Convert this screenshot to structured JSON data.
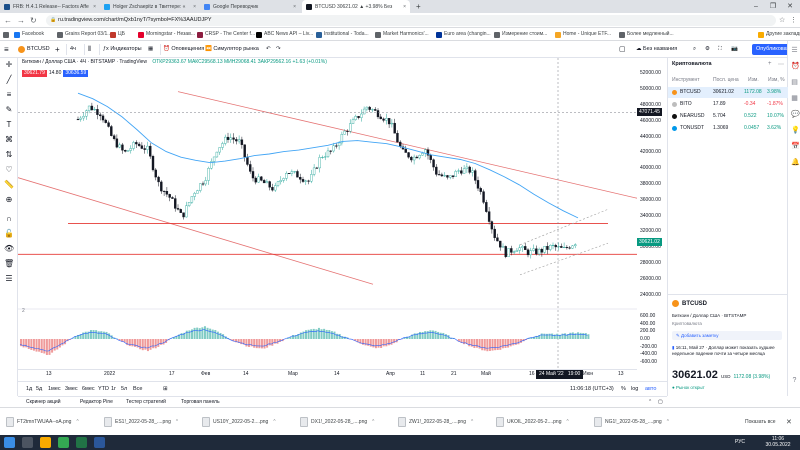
{
  "browser": {
    "tabs": [
      {
        "label": "FRB: H.4.1 Release-- Factors Affe",
        "color": "#1a4f8b"
      },
      {
        "label": "Holger Zschaepitz в Твиттере: «",
        "color": "#1da1f2"
      },
      {
        "label": "Google Переводчик",
        "color": "#4285f4"
      },
      {
        "label": "BTCUSD 30621.02 ▲ +3.98% Без",
        "color": "#131722"
      }
    ],
    "new_tab": "+",
    "url": "ru.tradingview.com/chart/mQxb1nyT/?symbol=FX%3AAUDJPY",
    "lock": "🔒"
  },
  "bookmarks": {
    "apps_label": "Приложения",
    "items": [
      {
        "label": "Facebook",
        "color": "#1877f2"
      },
      {
        "label": "Grains Report 03/1...",
        "color": "#5f6368"
      },
      {
        "label": "ЦБ",
        "color": "#c0392b"
      },
      {
        "label": "Morningstar - Незав...",
        "color": "#e4002b"
      },
      {
        "label": "CRSP - The Center f...",
        "color": "#8c1d40"
      },
      {
        "label": "ABC News API – Liv...",
        "color": "#000000"
      },
      {
        "label": "Institutional - Toda...",
        "color": "#2a6099"
      },
      {
        "label": "Market Harmonics'...",
        "color": "#5f6368"
      },
      {
        "label": "Euro area (changin...",
        "color": "#003399"
      },
      {
        "label": "Измерение стоим...",
        "color": "#5f6368"
      },
      {
        "label": "Home - Unique ETF...",
        "color": "#f5a623"
      },
      {
        "label": "Более медленный...",
        "color": "#5f6368"
      }
    ],
    "other": "Другие закладки"
  },
  "tv_toolbar": {
    "symbol": "BTCUSD",
    "interval": "4ч",
    "indicators": "Индикаторы",
    "alerts": "Оповещения",
    "replay": "Симулятор рынка",
    "layout_name": "Без названия",
    "publish": "Опубликовать"
  },
  "legend": {
    "title": "Биткоин / Доллар США · 4Ч · BITSTAMP · TradingView",
    "ohlc": "ОТКР29363.67 МАКС29568.13 МИН29068.41 ЗАКР29562.16 +1.63 (+0.01%)",
    "bid": "30621.79",
    "ask": "30636.59",
    "spread": "14.80",
    "osc_label": "2"
  },
  "price_scale": {
    "labels": [
      "52000.00",
      "50000.00",
      "48000.00",
      "46000.00",
      "44000.00",
      "42000.00",
      "40000.00",
      "38000.00",
      "36000.00",
      "34000.00",
      "32000.00",
      "30000.00",
      "28000.00",
      "26000.00",
      "24000.00"
    ],
    "crosshair_price": "47071.45",
    "osc_labels": [
      "600.00",
      "400.00",
      "200.00",
      "0.00",
      "-200.00",
      "-400.00",
      "-600.00"
    ]
  },
  "time_axis": {
    "labels": [
      "13",
      "2022",
      "17",
      "Фев",
      "14",
      "Мар",
      "14",
      "Апр",
      "11",
      "21",
      "Май",
      "16",
      "24 Май '22",
      "19:00",
      "13",
      "Июн"
    ],
    "crosshair_time": "24 Май '22   19:00"
  },
  "chart_data": {
    "type": "candlestick",
    "symbol": "BTCUSD",
    "timeframe": "4H",
    "price_axis_range": [
      22800,
      53200
    ],
    "horizontal_levels": [
      33000,
      29100
    ],
    "trend_channel": {
      "upper_start": 49700,
      "upper_end": 36200,
      "lower_start": 38800,
      "lower_end": 25300
    },
    "close_path": [
      46200,
      47800,
      46900,
      43700,
      41900,
      43100,
      42400,
      37900,
      36200,
      33800,
      36900,
      38700,
      42400,
      44000,
      43300,
      38900,
      38200,
      37300,
      39600,
      39100,
      38300,
      41500,
      42200,
      44500,
      46200,
      47800,
      46900,
      45800,
      42100,
      41300,
      42500,
      39400,
      38600,
      39800,
      39700,
      36400,
      31500,
      29200,
      30000,
      29300,
      29500,
      30100,
      29700,
      30621
    ],
    "moving_average": [
      49500,
      48800,
      47800,
      46500,
      44900,
      43200,
      42100,
      41400,
      41000,
      40700,
      40900,
      41200,
      41600,
      41800,
      42100,
      42300,
      42600,
      42900,
      43400,
      43500,
      43300,
      43100,
      42700,
      42200,
      41700,
      41400,
      41100,
      40600,
      39800,
      38900,
      37900,
      36700,
      35600,
      34600,
      33700
    ],
    "oscillator_histogram": [
      -180,
      -300,
      -420,
      -150,
      120,
      230,
      180,
      -60,
      -220,
      -310,
      -140,
      90,
      260,
      330,
      170,
      -50,
      -190,
      -260,
      -120,
      60,
      210,
      280,
      190,
      40,
      -120,
      -250,
      -170,
      30,
      160,
      240,
      110,
      -80,
      -230,
      -320,
      -250,
      -140,
      60,
      150,
      110,
      170,
      130
    ],
    "oscillator_range": [
      -650,
      650
    ]
  },
  "watchlist": {
    "title": "Криптовалюта",
    "headers": [
      "Инструмент",
      "Посл. цена",
      "Изм.",
      "Изм, %"
    ],
    "rows": [
      {
        "symbol": "BTCUSD",
        "last": "30621.02",
        "chg": "1172.08",
        "pct": "3.98%",
        "color": "#089981",
        "icon": "#f7931a"
      },
      {
        "symbol": "BITO",
        "last": "17.89",
        "chg": "-0.34",
        "pct": "-1.87%",
        "color": "#f23645",
        "icon": "#bdbdbd"
      },
      {
        "symbol": "NEARUSD",
        "last": "5.704",
        "chg": "0.522",
        "pct": "10.07%",
        "color": "#089981",
        "icon": "#111111"
      },
      {
        "symbol": "TONUSDT",
        "last": "1.3069",
        "chg": "0.0457",
        "pct": "3.62%",
        "color": "#089981",
        "icon": "#0098ea"
      }
    ],
    "detail_symbol": "BTCUSD",
    "detail_name": "Биткоин / Доллар США · BITSTAMP",
    "detail_category": "Криптовалюта",
    "add_note": "Добавить заметку",
    "news_text": "16:11, Май 27 · Доллар может показать худшее недельное падение почти за четыре месяца",
    "price_big": "30621.02",
    "price_currency": "USD",
    "price_change": "1172.08 (3.98%)",
    "market_status": "● Рынок открыт"
  },
  "bottom_bar": {
    "timeframes": [
      "1д",
      "5д",
      "1мес",
      "3мес",
      "6мес",
      "YTD",
      "1г",
      "5л",
      "Все"
    ],
    "clock": "11:06:18 (UTC+3)",
    "pct": "%",
    "log": "log",
    "auto": "авто"
  },
  "panel_tabs": [
    "Скринер акций",
    "Редактор Pine",
    "Тестер стратегий",
    "Торговая панель"
  ],
  "downloads": {
    "items": [
      "FT2tmnTWUAA--oA.png",
      "ES1!_2022-05-28_....png",
      "US10Y_2022-05-2....png",
      "DX1!_2022-05-28_....png",
      "ZW1!_2022-05-28_....png",
      "UKOIL_2022-05-2....png",
      "NG1!_2022-05-28_....png"
    ],
    "show_all": "Показать все"
  },
  "taskbar": {
    "time": "11:06",
    "date": "30.05.2022",
    "lang": "РУС"
  }
}
